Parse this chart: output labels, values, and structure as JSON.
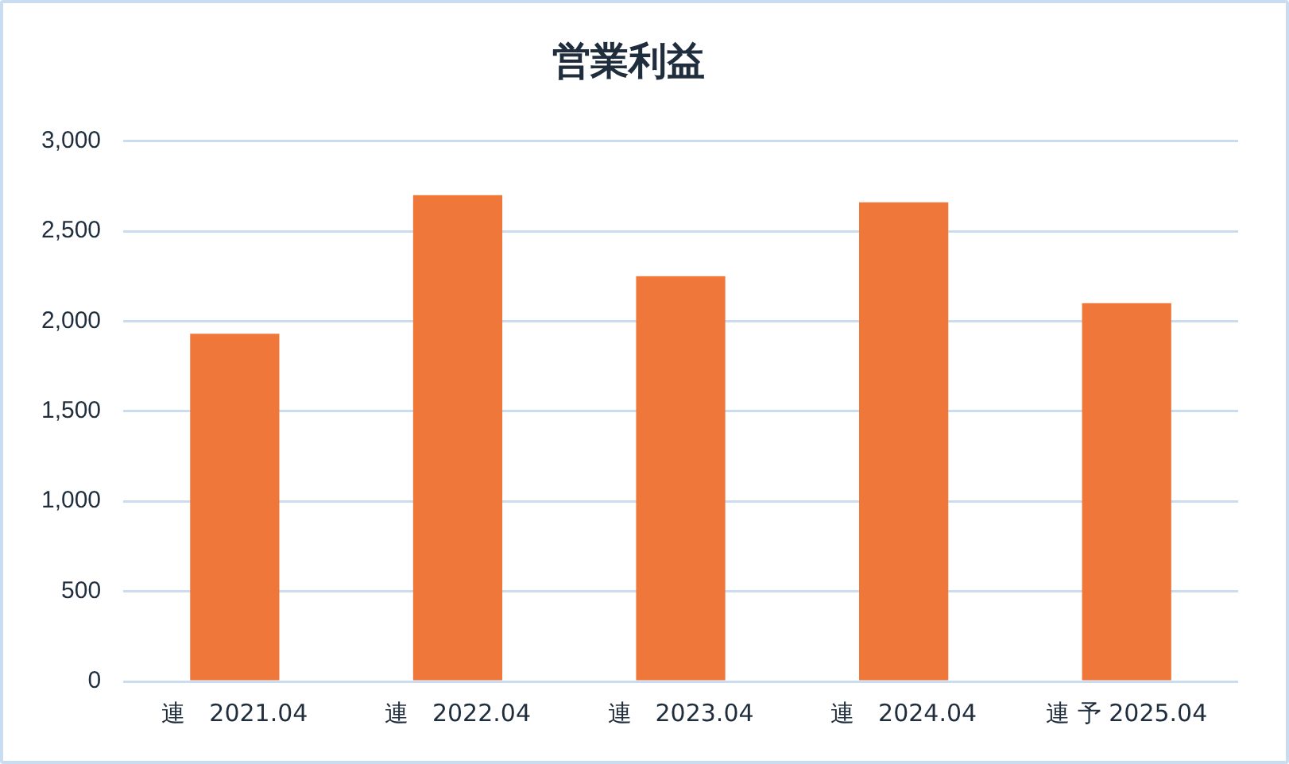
{
  "chart_data": {
    "type": "bar",
    "title": "営業利益",
    "categories": [
      "連　2021.04",
      "連　2022.04",
      "連　2023.04",
      "連　2024.04",
      "連 予 2025.04"
    ],
    "values": [
      1930,
      2700,
      2250,
      2660,
      2100
    ],
    "color": "#ef773a",
    "ylim": [
      0,
      3000
    ],
    "yticks": [
      {
        "value": 0,
        "label": "0"
      },
      {
        "value": 500,
        "label": "500"
      },
      {
        "value": 1000,
        "label": "1,000"
      },
      {
        "value": 1500,
        "label": "1,500"
      },
      {
        "value": 2000,
        "label": "2,000"
      },
      {
        "value": 2500,
        "label": "2,500"
      },
      {
        "value": 3000,
        "label": "3,000"
      }
    ],
    "grid": "y",
    "legend": false
  }
}
